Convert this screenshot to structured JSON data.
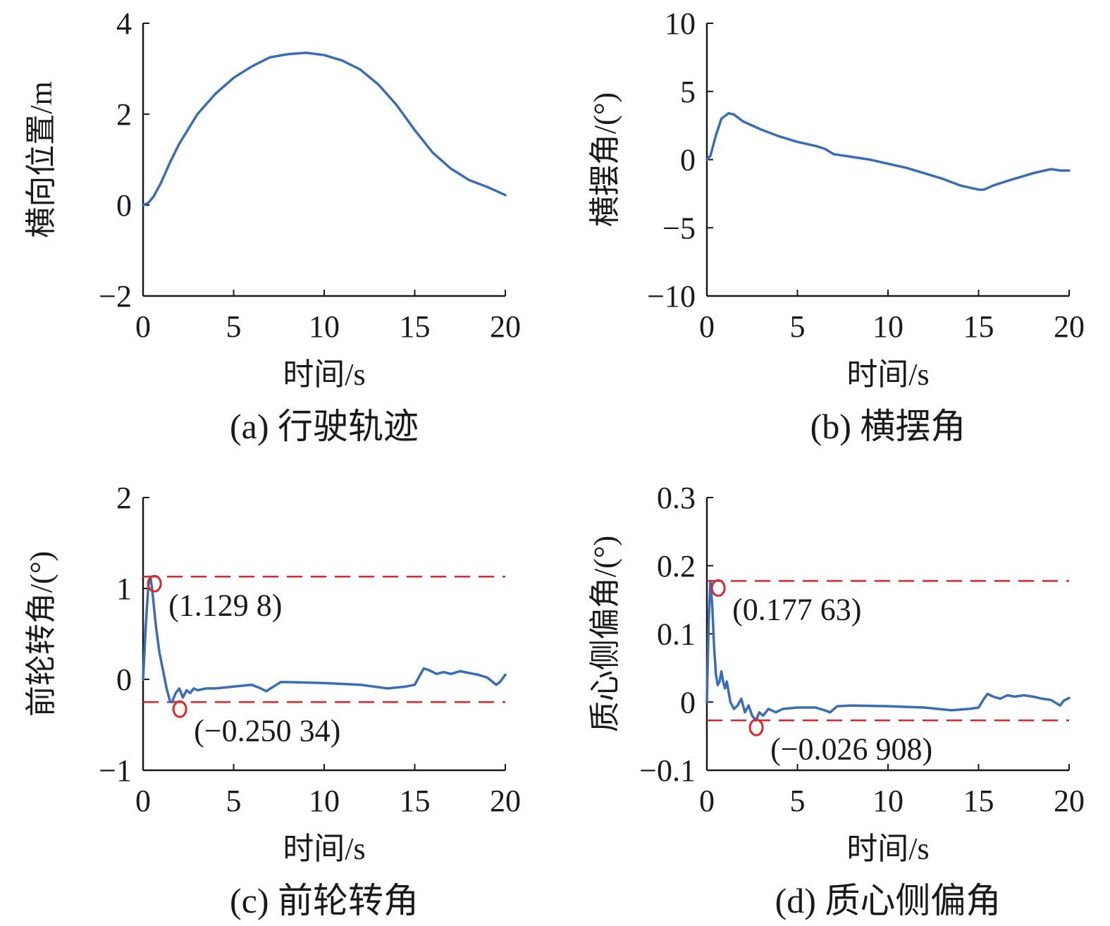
{
  "figure": {
    "line_color": "#3a6db5",
    "marker_color": "#e0262b",
    "axis_color": "#1a1a1a"
  },
  "chart_data": [
    {
      "id": "a",
      "type": "line",
      "caption": "(a) 行驶轨迹",
      "xlabel": "时间/s",
      "ylabel": "横向位置/m",
      "xlim": [
        0,
        20
      ],
      "ylim": [
        -2,
        4
      ],
      "xticks": [
        0,
        5,
        10,
        15,
        20
      ],
      "xtick_labels": [
        "0",
        "5",
        "10",
        "15",
        "20"
      ],
      "yticks": [
        -2,
        0,
        2,
        4
      ],
      "ytick_labels": [
        "−2",
        "0",
        "2",
        "4"
      ],
      "series": [
        {
          "name": "横向位置",
          "x": [
            0,
            0.3,
            0.6,
            1,
            1.5,
            2,
            3,
            4,
            5,
            6,
            7,
            8,
            9,
            10,
            11,
            12,
            13,
            14,
            15,
            16,
            17,
            18,
            19,
            20
          ],
          "y": [
            0,
            0.05,
            0.2,
            0.5,
            0.95,
            1.35,
            2.0,
            2.45,
            2.8,
            3.05,
            3.25,
            3.32,
            3.35,
            3.3,
            3.18,
            2.98,
            2.65,
            2.2,
            1.65,
            1.15,
            0.8,
            0.55,
            0.4,
            0.22
          ]
        }
      ],
      "hlines": [],
      "markers": []
    },
    {
      "id": "b",
      "type": "line",
      "caption": "(b) 横摆角",
      "xlabel": "时间/s",
      "ylabel": "横摆角/(°)",
      "xlim": [
        0,
        20
      ],
      "ylim": [
        -10,
        10
      ],
      "xticks": [
        0,
        5,
        10,
        15,
        20
      ],
      "xtick_labels": [
        "0",
        "5",
        "10",
        "15",
        "20"
      ],
      "yticks": [
        -10,
        -5,
        0,
        5,
        10
      ],
      "ytick_labels": [
        "−10",
        "−5",
        "0",
        "5",
        "10"
      ],
      "series": [
        {
          "name": "横摆角",
          "x": [
            0,
            0.2,
            0.5,
            0.8,
            1.2,
            1.5,
            2,
            2.5,
            3,
            4,
            5,
            6,
            6.5,
            7,
            7.5,
            8,
            9,
            10,
            11,
            12,
            13,
            14,
            15,
            15.3,
            15.8,
            16.5,
            17,
            18,
            19,
            19.5,
            20
          ],
          "y": [
            0,
            0.3,
            1.8,
            3.0,
            3.4,
            3.3,
            2.8,
            2.5,
            2.2,
            1.7,
            1.3,
            1.0,
            0.8,
            0.4,
            0.3,
            0.2,
            0.0,
            -0.3,
            -0.6,
            -1.0,
            -1.4,
            -1.9,
            -2.2,
            -2.2,
            -1.9,
            -1.6,
            -1.4,
            -1.0,
            -0.7,
            -0.8,
            -0.8
          ]
        }
      ],
      "hlines": [],
      "markers": []
    },
    {
      "id": "c",
      "type": "line",
      "caption": "(c) 前轮转角",
      "xlabel": "时间/s",
      "ylabel": "前轮转角/(°)",
      "xlim": [
        0,
        20
      ],
      "ylim": [
        -1,
        2
      ],
      "xticks": [
        0,
        5,
        10,
        15,
        20
      ],
      "xtick_labels": [
        "0",
        "5",
        "10",
        "15",
        "20"
      ],
      "yticks": [
        -1,
        0,
        1,
        2
      ],
      "ytick_labels": [
        "−1",
        "0",
        "1",
        "2"
      ],
      "series": [
        {
          "name": "前轮转角",
          "x": [
            0,
            0.15,
            0.3,
            0.4,
            0.5,
            0.7,
            0.9,
            1.1,
            1.3,
            1.5,
            1.6,
            1.8,
            2.0,
            2.2,
            2.4,
            2.6,
            2.8,
            3,
            3.5,
            4,
            5,
            6,
            6.5,
            6.8,
            7.2,
            7.6,
            8,
            10,
            12,
            13.5,
            14.5,
            15.0,
            15.3,
            15.5,
            15.8,
            16.2,
            16.6,
            17.0,
            17.5,
            18.0,
            18.5,
            19.0,
            19.5,
            19.7,
            20
          ],
          "y": [
            0,
            0.6,
            1.05,
            1.13,
            1.0,
            0.6,
            0.3,
            0.1,
            -0.1,
            -0.25,
            -0.25,
            -0.15,
            -0.1,
            -0.2,
            -0.12,
            -0.15,
            -0.1,
            -0.12,
            -0.1,
            -0.1,
            -0.08,
            -0.06,
            -0.1,
            -0.13,
            -0.08,
            -0.03,
            -0.03,
            -0.04,
            -0.06,
            -0.1,
            -0.08,
            -0.06,
            0.05,
            0.12,
            0.1,
            0.06,
            0.08,
            0.06,
            0.09,
            0.07,
            0.05,
            0.02,
            -0.06,
            -0.03,
            0.05
          ]
        }
      ],
      "hlines": [
        1.1298,
        -0.25034
      ],
      "markers": [
        {
          "x": 0.55,
          "y": 1.1298,
          "symbol": "o",
          "label": "(1.129 8)",
          "label_pos": "below-right"
        },
        {
          "x": 1.95,
          "y": -0.25034,
          "symbol": "o",
          "label": "(−0.250 34)",
          "label_pos": "below-right"
        }
      ]
    },
    {
      "id": "d",
      "type": "line",
      "caption": "(d) 质心侧偏角",
      "xlabel": "时间/s",
      "ylabel": "质心侧偏角/(°)",
      "xlim": [
        0,
        20
      ],
      "ylim": [
        -0.1,
        0.3
      ],
      "xticks": [
        0,
        5,
        10,
        15,
        20
      ],
      "xtick_labels": [
        "0",
        "5",
        "10",
        "15",
        "20"
      ],
      "yticks": [
        -0.1,
        0,
        0.1,
        0.2,
        0.3
      ],
      "ytick_labels": [
        "−0.1",
        "0",
        "0.1",
        "0.2",
        "0.3"
      ],
      "series": [
        {
          "name": "质心侧偏角",
          "x": [
            0,
            0.1,
            0.2,
            0.3,
            0.4,
            0.5,
            0.6,
            0.7,
            0.8,
            0.9,
            1.0,
            1.1,
            1.2,
            1.3,
            1.5,
            1.7,
            1.9,
            2.1,
            2.3,
            2.5,
            2.7,
            2.9,
            3.1,
            3.4,
            3.8,
            4.2,
            5,
            6,
            6.5,
            6.8,
            7.2,
            8,
            10,
            12,
            13.5,
            14.5,
            15.0,
            15.3,
            15.5,
            15.8,
            16.2,
            16.6,
            17.0,
            17.5,
            18.0,
            18.5,
            19.0,
            19.5,
            19.7,
            20
          ],
          "y": [
            0,
            0.12,
            0.1776,
            0.14,
            0.08,
            0.04,
            0.025,
            0.03,
            0.045,
            0.03,
            0.02,
            0.03,
            0.015,
            0.0,
            -0.01,
            -0.005,
            0.005,
            -0.015,
            -0.005,
            -0.02,
            -0.027,
            -0.015,
            -0.02,
            -0.01,
            -0.015,
            -0.01,
            -0.008,
            -0.008,
            -0.012,
            -0.015,
            -0.006,
            -0.005,
            -0.006,
            -0.008,
            -0.012,
            -0.01,
            -0.008,
            0.005,
            0.012,
            0.008,
            0.005,
            0.01,
            0.008,
            0.01,
            0.008,
            0.005,
            0.003,
            -0.005,
            0.002,
            0.006
          ]
        }
      ],
      "hlines": [
        0.17763,
        -0.026908
      ],
      "markers": [
        {
          "x": 0.55,
          "y": 0.17763,
          "symbol": "o",
          "label": "(0.177 63)",
          "label_pos": "below-right"
        },
        {
          "x": 2.65,
          "y": -0.026908,
          "symbol": "o",
          "label": "(−0.026 908)",
          "label_pos": "below-right"
        }
      ]
    }
  ]
}
